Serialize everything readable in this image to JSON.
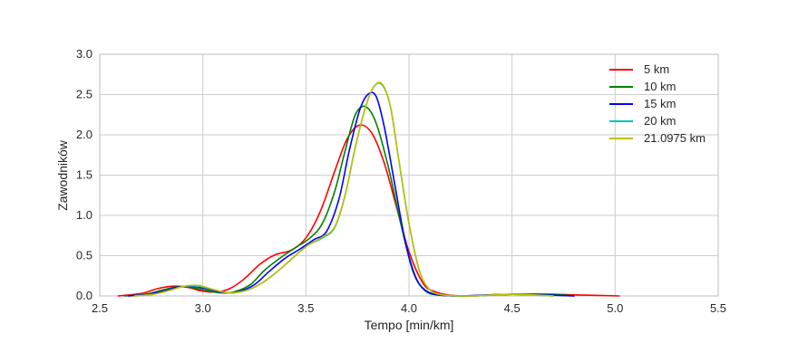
{
  "chart_data": {
    "type": "line",
    "xlabel": "Tempo [min/km]",
    "ylabel": "Zawodników",
    "xlim": [
      2.5,
      5.5
    ],
    "ylim": [
      0.0,
      3.0
    ],
    "xticks": [
      2.5,
      3.0,
      3.5,
      4.0,
      4.5,
      5.0,
      5.5
    ],
    "yticks": [
      0.0,
      0.5,
      1.0,
      1.5,
      2.0,
      2.5,
      3.0
    ],
    "xtick_labels": [
      "2.5",
      "3.0",
      "3.5",
      "4.0",
      "4.5",
      "5.0",
      "5.5"
    ],
    "ytick_labels": [
      "0.0",
      "0.5",
      "1.0",
      "1.5",
      "2.0",
      "2.5",
      "3.0"
    ],
    "grid": true,
    "legend_position": "top-right",
    "series": [
      {
        "name": "5 km",
        "color": "#ff0000",
        "x": [
          2.59,
          2.7,
          2.78,
          2.85,
          2.92,
          3.0,
          3.07,
          3.13,
          3.2,
          3.28,
          3.35,
          3.43,
          3.5,
          3.57,
          3.64,
          3.7,
          3.76,
          3.82,
          3.88,
          3.94,
          4.0,
          4.07,
          4.13,
          4.2,
          4.3,
          4.5,
          4.7,
          4.85,
          5.02
        ],
        "y": [
          0.0,
          0.03,
          0.09,
          0.12,
          0.11,
          0.06,
          0.05,
          0.09,
          0.21,
          0.4,
          0.51,
          0.57,
          0.72,
          1.05,
          1.55,
          1.95,
          2.12,
          2.02,
          1.65,
          1.1,
          0.55,
          0.15,
          0.05,
          0.01,
          0.0,
          0.02,
          0.02,
          0.01,
          0.0
        ]
      },
      {
        "name": "10 km",
        "color": "#008000",
        "x": [
          2.62,
          2.72,
          2.8,
          2.87,
          2.93,
          3.0,
          3.08,
          3.15,
          3.23,
          3.3,
          3.38,
          3.45,
          3.52,
          3.58,
          3.64,
          3.69,
          3.74,
          3.79,
          3.84,
          3.9,
          3.96,
          4.02,
          4.08,
          4.15,
          4.25,
          4.5,
          4.7,
          4.8
        ],
        "y": [
          0.0,
          0.02,
          0.07,
          0.11,
          0.11,
          0.08,
          0.04,
          0.05,
          0.14,
          0.32,
          0.48,
          0.6,
          0.72,
          0.9,
          1.3,
          1.8,
          2.25,
          2.35,
          2.15,
          1.6,
          0.9,
          0.3,
          0.06,
          0.01,
          0.0,
          0.02,
          0.02,
          0.0
        ]
      },
      {
        "name": "15 km",
        "color": "#0000ff",
        "x": [
          2.64,
          2.73,
          2.81,
          2.88,
          2.95,
          3.02,
          3.1,
          3.17,
          3.25,
          3.32,
          3.4,
          3.47,
          3.54,
          3.6,
          3.66,
          3.71,
          3.76,
          3.8,
          3.84,
          3.88,
          3.93,
          3.98,
          4.03,
          4.08,
          4.15,
          4.25,
          4.5,
          4.8
        ],
        "y": [
          0.0,
          0.02,
          0.06,
          0.11,
          0.12,
          0.09,
          0.04,
          0.05,
          0.14,
          0.3,
          0.47,
          0.58,
          0.7,
          0.8,
          1.2,
          1.8,
          2.3,
          2.5,
          2.48,
          2.1,
          1.4,
          0.7,
          0.25,
          0.07,
          0.01,
          0.0,
          0.02,
          0.0
        ]
      },
      {
        "name": "20 km",
        "color": "#00bfbf",
        "x": [
          2.67,
          2.76,
          2.84,
          2.91,
          2.98,
          3.05,
          3.12,
          3.2,
          3.28,
          3.36,
          3.44,
          3.51,
          3.58,
          3.64,
          3.69,
          3.74,
          3.79,
          3.83,
          3.87,
          3.91,
          3.95,
          4.0,
          4.05,
          4.1,
          4.17,
          4.3,
          4.5,
          4.7
        ],
        "y": [
          0.0,
          0.02,
          0.07,
          0.12,
          0.12,
          0.08,
          0.04,
          0.06,
          0.15,
          0.3,
          0.48,
          0.63,
          0.72,
          0.85,
          1.25,
          1.85,
          2.35,
          2.6,
          2.62,
          2.35,
          1.7,
          0.9,
          0.32,
          0.08,
          0.01,
          0.0,
          0.02,
          0.0
        ]
      },
      {
        "name": "21.0975 km",
        "color": "#bfbf00",
        "x": [
          2.67,
          2.76,
          2.84,
          2.91,
          2.98,
          3.05,
          3.12,
          3.2,
          3.28,
          3.36,
          3.44,
          3.51,
          3.58,
          3.64,
          3.69,
          3.74,
          3.79,
          3.83,
          3.87,
          3.91,
          3.95,
          4.0,
          4.05,
          4.1,
          4.17,
          4.3,
          4.5,
          4.7
        ],
        "y": [
          0.0,
          0.02,
          0.07,
          0.12,
          0.13,
          0.08,
          0.04,
          0.06,
          0.15,
          0.3,
          0.48,
          0.63,
          0.73,
          0.86,
          1.25,
          1.85,
          2.35,
          2.6,
          2.63,
          2.35,
          1.7,
          0.9,
          0.32,
          0.08,
          0.01,
          0.0,
          0.02,
          0.0
        ]
      }
    ]
  }
}
